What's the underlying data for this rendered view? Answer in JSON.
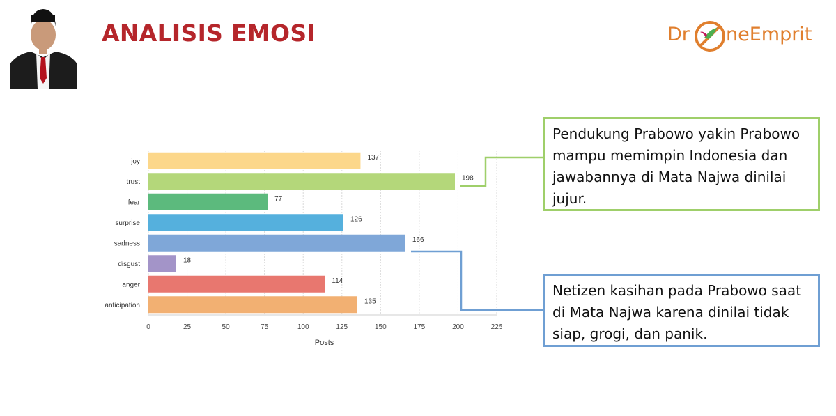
{
  "slide": {
    "title": "ANALISIS EMOSI",
    "logo": {
      "part1": "Dr",
      "part2": "neEmprit"
    }
  },
  "colors": {
    "title": "#b5262b",
    "logo": "#e07f2e",
    "callout_green": "#9fcf6a",
    "callout_blue": "#6f9fd3"
  },
  "callouts": {
    "trust_note": "Pendukung Prabowo yakin Prabowo mampu memimpin Indonesia dan jawabannya di Mata Najwa dinilai jujur.",
    "sadness_note": "Netizen kasihan pada Prabowo saat di Mata Najwa karena dinilai tidak siap, grogi, dan panik."
  },
  "chart_data": {
    "type": "bar",
    "orientation": "horizontal",
    "categories": [
      "joy",
      "trust",
      "fear",
      "surprise",
      "sadness",
      "disgust",
      "anger",
      "anticipation"
    ],
    "values": [
      137,
      198,
      77,
      126,
      166,
      18,
      114,
      135
    ],
    "colors": [
      "#fcd78a",
      "#b4d77a",
      "#5cba7d",
      "#55b0dd",
      "#7fa7d8",
      "#a394c8",
      "#e8776f",
      "#f2b072"
    ],
    "xlabel": "Posts",
    "ylabel": "",
    "xlim": [
      0,
      225
    ],
    "xticks": [
      0,
      25,
      50,
      75,
      100,
      125,
      150,
      175,
      200,
      225
    ],
    "data_labels": true,
    "grid": "vertical-dotted"
  }
}
